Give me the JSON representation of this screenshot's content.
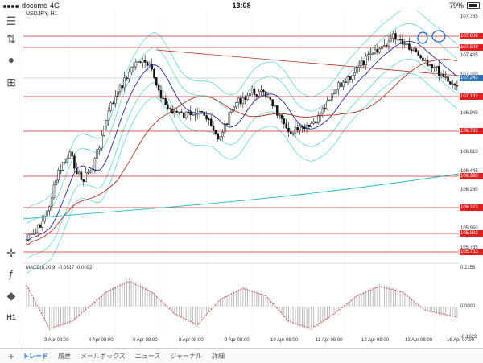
{
  "status": {
    "carrier": "docomo",
    "network": "4G",
    "time": "13:08",
    "battery": "79%"
  },
  "symbol": "USDJPY, H1",
  "macd_title": "MACD(8,20,9) -0.0517 -0.0092",
  "price_ticks": [
    "107.765",
    "107.435",
    "107.270",
    "106.940",
    "106.610",
    "106.445",
    "106.280",
    "105.950",
    "105.785"
  ],
  "price_labels": [
    {
      "text": "107.608",
      "color": "#e02020"
    },
    {
      "text": "107.509",
      "color": "#e02020"
    },
    {
      "text": "107.243",
      "color": "#2f6fb0"
    },
    {
      "text": "107.182",
      "color": "#e02020"
    },
    {
      "text": "106.783",
      "color": "#e02020"
    },
    {
      "text": "106.380",
      "color": "#e02020"
    },
    {
      "text": "106.122",
      "color": "#e02020"
    },
    {
      "text": "105.903",
      "color": "#e02020"
    },
    {
      "text": "105.733",
      "color": "#e02020"
    }
  ],
  "macd_ticks": [
    "0.2155",
    "0.0000",
    "-0.1622"
  ],
  "dates": [
    "3 Apr 08:00",
    "4 Apr 08:00",
    "6 Apr 08:00",
    "8 Apr 08:00",
    "9 Apr 08:00",
    "10 Apr 08:00",
    "11 Apr 08:00",
    "12 Apr 08:00",
    "13 Apr 08:00",
    "16 Apr 07:00"
  ],
  "tabs": [
    "トレード",
    "履歴",
    "メールボックス",
    "ニュース",
    "ジャーナル",
    "詳細"
  ],
  "side_icons": [
    "hamburger-icon",
    "thumbs-icon",
    "chat-icon",
    "add-chart-icon",
    "crosshair-icon",
    "function-icon",
    "shapes-icon",
    "timeframe-icon"
  ],
  "timeframe": "H1",
  "colors": {
    "support": "#e02020",
    "bands": "#33c7c7",
    "ma_fast": "#1e2aa0",
    "ma_slow": "#b03020",
    "ma_long": "#20b8c8",
    "macd_signal": "#d03030"
  }
}
